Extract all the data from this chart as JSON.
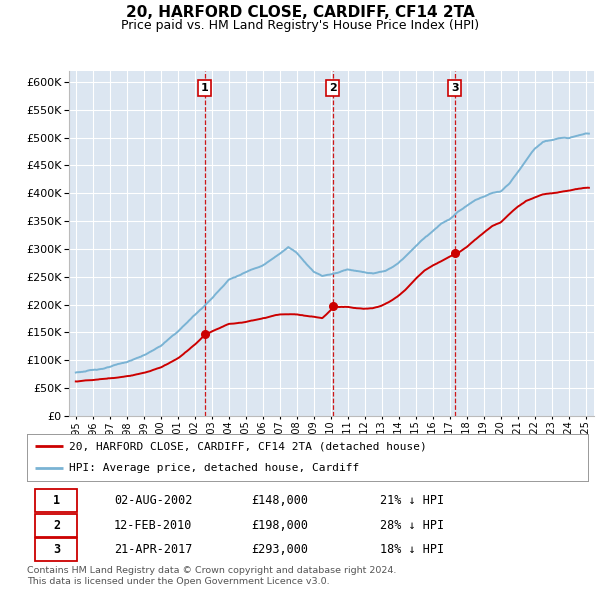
{
  "title": "20, HARFORD CLOSE, CARDIFF, CF14 2TA",
  "subtitle": "Price paid vs. HM Land Registry's House Price Index (HPI)",
  "background_color": "#ffffff",
  "plot_bg_color": "#dce6f1",
  "grid_color": "#ffffff",
  "ylim": [
    0,
    620000
  ],
  "yticks": [
    0,
    50000,
    100000,
    150000,
    200000,
    250000,
    300000,
    350000,
    400000,
    450000,
    500000,
    550000,
    600000
  ],
  "xlim_start": 1994.6,
  "xlim_end": 2025.5,
  "sale_dates": [
    2002.58,
    2010.12,
    2017.3
  ],
  "sale_prices": [
    148000,
    198000,
    293000
  ],
  "legend_entries": [
    "20, HARFORD CLOSE, CARDIFF, CF14 2TA (detached house)",
    "HPI: Average price, detached house, Cardiff"
  ],
  "table_rows": [
    [
      "1",
      "02-AUG-2002",
      "£148,000",
      "21% ↓ HPI"
    ],
    [
      "2",
      "12-FEB-2010",
      "£198,000",
      "28% ↓ HPI"
    ],
    [
      "3",
      "21-APR-2017",
      "£293,000",
      "18% ↓ HPI"
    ]
  ],
  "footer": "Contains HM Land Registry data © Crown copyright and database right 2024.\nThis data is licensed under the Open Government Licence v3.0.",
  "hpi_color": "#7ab3d4",
  "sale_color": "#cc0000",
  "vline_color": "#cc0000",
  "hpi_keypoints": [
    [
      1995.0,
      78000
    ],
    [
      1996.0,
      82000
    ],
    [
      1997.0,
      88000
    ],
    [
      1998.0,
      96000
    ],
    [
      1999.0,
      108000
    ],
    [
      2000.0,
      125000
    ],
    [
      2001.0,
      150000
    ],
    [
      2002.0,
      180000
    ],
    [
      2003.0,
      210000
    ],
    [
      2004.0,
      245000
    ],
    [
      2005.0,
      258000
    ],
    [
      2006.0,
      272000
    ],
    [
      2007.0,
      292000
    ],
    [
      2007.5,
      305000
    ],
    [
      2008.0,
      295000
    ],
    [
      2008.5,
      278000
    ],
    [
      2009.0,
      262000
    ],
    [
      2009.5,
      255000
    ],
    [
      2010.0,
      258000
    ],
    [
      2010.5,
      262000
    ],
    [
      2011.0,
      268000
    ],
    [
      2011.5,
      265000
    ],
    [
      2012.0,
      262000
    ],
    [
      2012.5,
      260000
    ],
    [
      2013.0,
      262000
    ],
    [
      2013.5,
      268000
    ],
    [
      2014.0,
      278000
    ],
    [
      2014.5,
      292000
    ],
    [
      2015.0,
      308000
    ],
    [
      2015.5,
      322000
    ],
    [
      2016.0,
      335000
    ],
    [
      2016.5,
      348000
    ],
    [
      2017.0,
      355000
    ],
    [
      2017.5,
      368000
    ],
    [
      2018.0,
      378000
    ],
    [
      2018.5,
      388000
    ],
    [
      2019.0,
      395000
    ],
    [
      2019.5,
      402000
    ],
    [
      2020.0,
      405000
    ],
    [
      2020.5,
      418000
    ],
    [
      2021.0,
      438000
    ],
    [
      2021.5,
      460000
    ],
    [
      2022.0,
      480000
    ],
    [
      2022.5,
      492000
    ],
    [
      2023.0,
      495000
    ],
    [
      2023.5,
      498000
    ],
    [
      2024.0,
      500000
    ],
    [
      2024.5,
      505000
    ],
    [
      2025.0,
      510000
    ]
  ],
  "prop_keypoints": [
    [
      1995.0,
      62000
    ],
    [
      1996.0,
      65000
    ],
    [
      1997.0,
      68000
    ],
    [
      1998.0,
      72000
    ],
    [
      1999.0,
      78000
    ],
    [
      2000.0,
      88000
    ],
    [
      2001.0,
      105000
    ],
    [
      2002.0,
      130000
    ],
    [
      2002.58,
      148000
    ],
    [
      2003.0,
      155000
    ],
    [
      2004.0,
      168000
    ],
    [
      2005.0,
      172000
    ],
    [
      2006.0,
      178000
    ],
    [
      2007.0,
      185000
    ],
    [
      2008.0,
      185000
    ],
    [
      2008.5,
      182000
    ],
    [
      2009.0,
      180000
    ],
    [
      2009.5,
      178000
    ],
    [
      2010.0,
      192000
    ],
    [
      2010.12,
      198000
    ],
    [
      2010.5,
      198000
    ],
    [
      2011.0,
      198000
    ],
    [
      2011.5,
      196000
    ],
    [
      2012.0,
      195000
    ],
    [
      2012.5,
      196000
    ],
    [
      2013.0,
      200000
    ],
    [
      2013.5,
      208000
    ],
    [
      2014.0,
      218000
    ],
    [
      2014.5,
      232000
    ],
    [
      2015.0,
      248000
    ],
    [
      2015.5,
      262000
    ],
    [
      2016.0,
      272000
    ],
    [
      2016.5,
      280000
    ],
    [
      2017.0,
      288000
    ],
    [
      2017.3,
      293000
    ],
    [
      2017.5,
      295000
    ],
    [
      2018.0,
      305000
    ],
    [
      2018.5,
      318000
    ],
    [
      2019.0,
      330000
    ],
    [
      2019.5,
      342000
    ],
    [
      2020.0,
      348000
    ],
    [
      2020.5,
      362000
    ],
    [
      2021.0,
      375000
    ],
    [
      2021.5,
      385000
    ],
    [
      2022.0,
      392000
    ],
    [
      2022.5,
      398000
    ],
    [
      2023.0,
      400000
    ],
    [
      2023.5,
      402000
    ],
    [
      2024.0,
      405000
    ],
    [
      2024.5,
      408000
    ],
    [
      2025.0,
      410000
    ]
  ]
}
